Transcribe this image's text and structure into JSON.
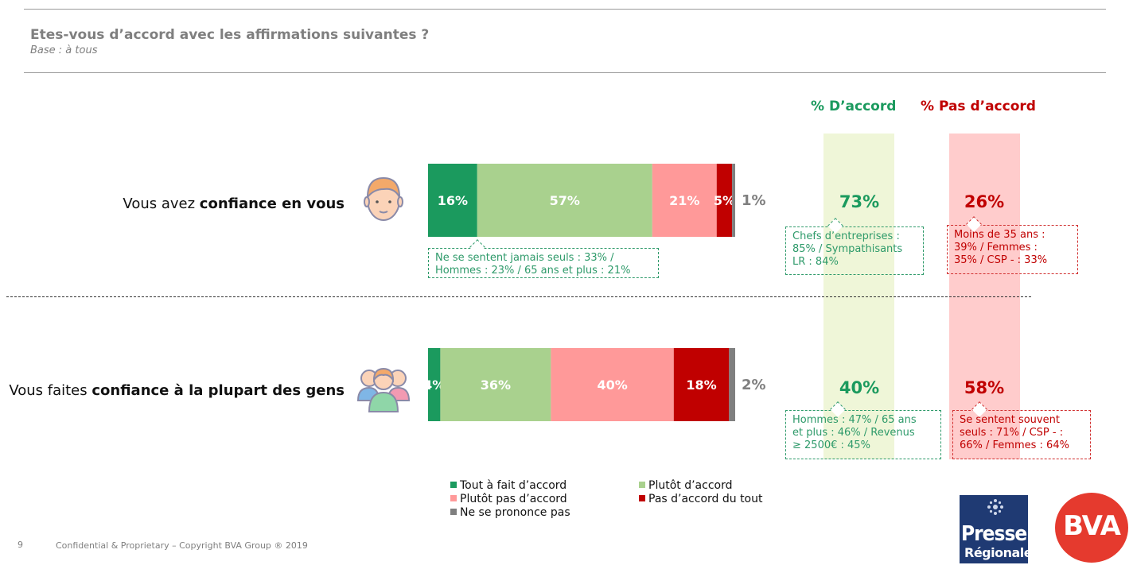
{
  "header": {
    "title": "Etes-vous d’accord avec les affirmations suivantes ?",
    "subtitle": "Base : à tous"
  },
  "columns": {
    "agree_header": "% D’accord",
    "disagree_header": "% Pas d’accord"
  },
  "rows": [
    {
      "label_plain": "Vous avez ",
      "label_bold": "confiance en vous",
      "icon": "person-icon",
      "agree_total": "73%",
      "disagree_total": "26%",
      "bar_note": [
        "Ne se sentent jamais seuls : 33% /",
        "Hommes : 23% / 65 ans et plus : 21%"
      ],
      "agree_note": [
        "Chefs d’entreprises :",
        "85% / Sympathisants",
        "LR : 84%"
      ],
      "disagree_note": [
        "Moins de 35 ans :",
        "39% / Femmes :",
        "35% / CSP - : 33%"
      ]
    },
    {
      "label_plain": "Vous faites ",
      "label_bold": "confiance à la plupart des gens",
      "icon": "group-icon",
      "agree_total": "40%",
      "disagree_total": "58%",
      "agree_note": [
        "Hommes : 47% / 65 ans",
        "et plus : 46% / Revenus",
        "≥ 2500€ : 45%"
      ],
      "disagree_note": [
        "Se sentent souvent",
        "seuls : 71% / CSP - :",
        "66% / Femmes : 64%"
      ]
    }
  ],
  "chart_data": {
    "type": "bar",
    "orientation": "horizontal",
    "stacked": true,
    "categories": [
      "Vous avez confiance en vous",
      "Vous faites confiance à la plupart des gens"
    ],
    "series": [
      {
        "name": "Tout à fait d’accord",
        "values": [
          16,
          4
        ],
        "labels": [
          "16%",
          "4%"
        ],
        "color": "#1b9a5e"
      },
      {
        "name": "Plutôt d’accord",
        "values": [
          57,
          36
        ],
        "labels": [
          "57%",
          "36%"
        ],
        "color": "#a9d18e"
      },
      {
        "name": "Plutôt pas d’accord",
        "values": [
          21,
          40
        ],
        "labels": [
          "21%",
          "40%"
        ],
        "color": "#ff9999"
      },
      {
        "name": "Pas d’accord du tout",
        "values": [
          5,
          18
        ],
        "labels": [
          "5%",
          "18%"
        ],
        "color": "#c00000"
      },
      {
        "name": "Ne se prononce pas",
        "values": [
          1,
          2
        ],
        "labels": [
          "1%",
          "2%"
        ],
        "color": "#7f7f7f"
      }
    ],
    "xlim": [
      0,
      100
    ],
    "legend_position": "bottom"
  },
  "colors": {
    "agree": "#1b9a5e",
    "disagree": "#c00000",
    "agree_band": "#eff6d8",
    "disagree_band": "#ffcccc",
    "note_green": "#2e9a6a",
    "note_red": "#d13030"
  },
  "footer": {
    "page_number": "9",
    "copyright": "Confidential & Proprietary – Copyright BVA Group ®  2019"
  },
  "logos": {
    "presse_line1": "Presse",
    "presse_line2": "Régionale",
    "bva": "BVA"
  }
}
